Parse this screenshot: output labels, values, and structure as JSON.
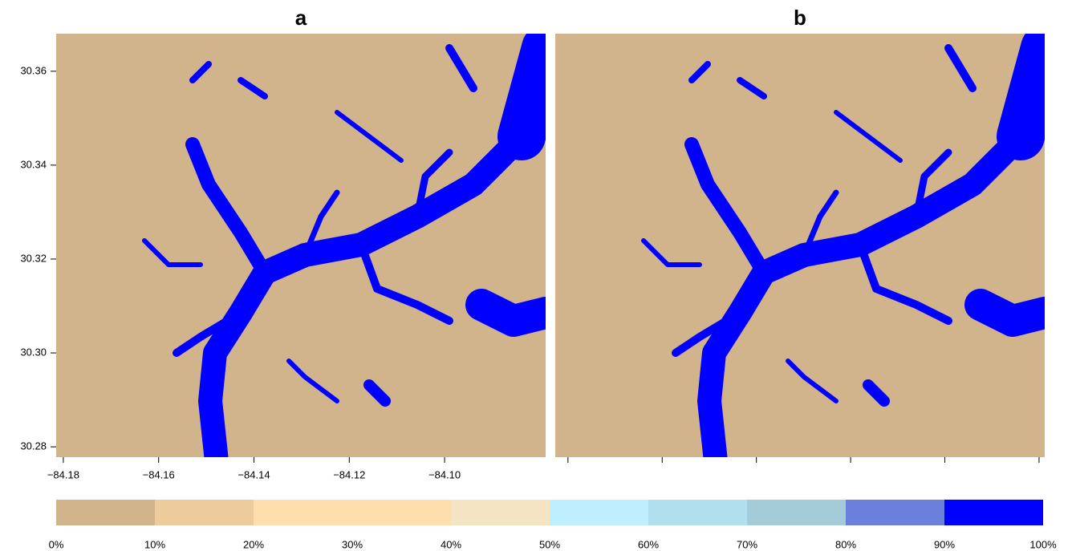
{
  "chart_data": [
    {
      "type": "raster",
      "title": "a",
      "background": "#d2b48c",
      "water": "#0000ff",
      "xlim": [
        -84.1815,
        -84.0788
      ],
      "ylim": [
        30.2778,
        30.368
      ],
      "xticks": [
        {
          "value": -84.18,
          "label": "−84.18"
        },
        {
          "value": -84.16,
          "label": "−84.16"
        },
        {
          "value": -84.14,
          "label": "−84.14"
        },
        {
          "value": -84.12,
          "label": "−84.12"
        },
        {
          "value": -84.1,
          "label": "−84.10"
        }
      ],
      "yticks": [
        {
          "value": 30.28,
          "label": "30.28"
        },
        {
          "value": 30.3,
          "label": "30.30"
        },
        {
          "value": 30.32,
          "label": "30.32"
        },
        {
          "value": 30.34,
          "label": "30.34"
        },
        {
          "value": 30.36,
          "label": "30.36"
        }
      ]
    },
    {
      "type": "raster",
      "title": "b",
      "background": "#d2b48c",
      "water": "#0000ff",
      "xlim": [
        -84.1827,
        -84.0788
      ],
      "ylim": [
        30.2778,
        30.368
      ],
      "xticks": [
        -84.18,
        -84.16,
        -84.14,
        -84.12,
        -84.1,
        -84.08
      ]
    },
    {
      "type": "colorbar",
      "xlim": [
        0,
        100
      ],
      "bins": [
        0,
        10,
        20,
        30,
        40,
        50,
        60,
        70,
        80,
        90,
        100
      ],
      "colors": [
        "#d2b48c",
        "#eecb9d",
        "#ffdead",
        "#ffdead",
        "#f5e4c3",
        "#bfefff",
        "#b2dfee",
        "#a4cbd8",
        "#6a80dc",
        "#0000ff"
      ],
      "xticks": [
        {
          "value": 0,
          "label": "0%"
        },
        {
          "value": 10,
          "label": "10%"
        },
        {
          "value": 20,
          "label": "20%"
        },
        {
          "value": 30,
          "label": "30%"
        },
        {
          "value": 40,
          "label": "40%"
        },
        {
          "value": 50,
          "label": "50%"
        },
        {
          "value": 60,
          "label": "60%"
        },
        {
          "value": 70,
          "label": "70%"
        },
        {
          "value": 80,
          "label": "80%"
        },
        {
          "value": 90,
          "label": "90%"
        },
        {
          "value": 100,
          "label": "100%"
        }
      ]
    }
  ]
}
